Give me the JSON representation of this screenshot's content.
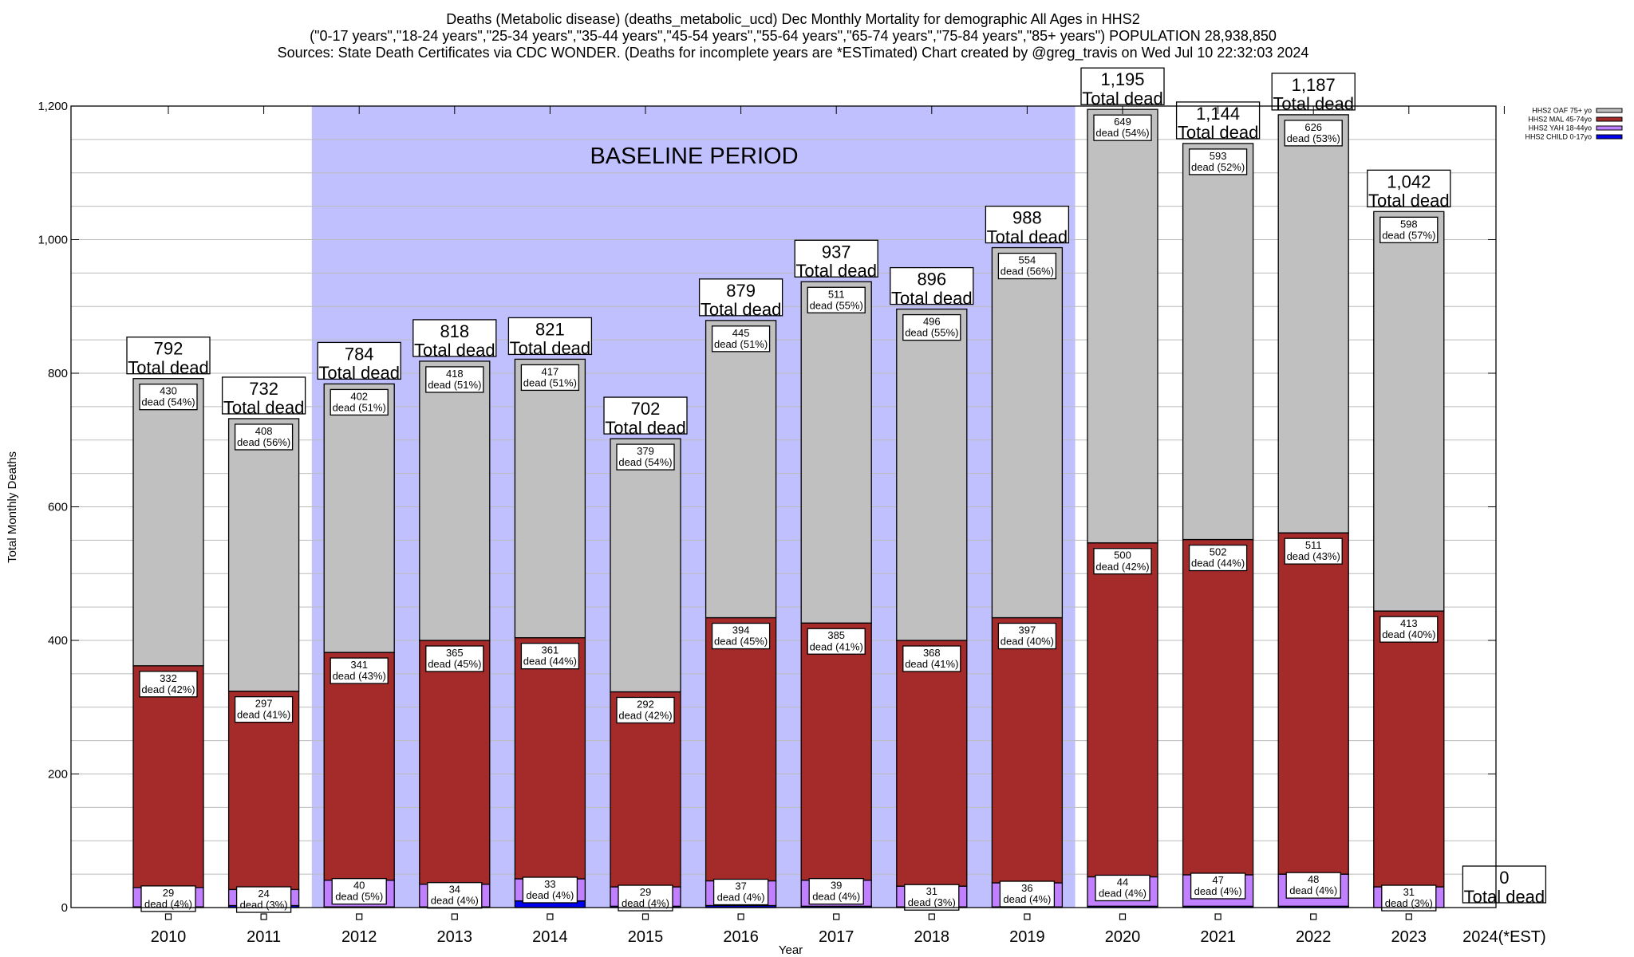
{
  "chart_data": {
    "type": "bar",
    "stacked": true,
    "title_lines": [
      "Deaths (Metabolic disease) (deaths_metabolic_ucd) Dec Monthly Mortality for demographic All Ages in HHS2",
      "(\"0-17 years\",\"18-24 years\",\"25-34 years\",\"35-44 years\",\"45-54 years\",\"55-64 years\",\"65-74 years\",\"75-84 years\",\"85+ years\") POPULATION 28,938,850",
      "Sources: State Death Certificates via CDC WONDER. (Deaths for incomplete years are *ESTimated)              Chart created by @greg_travis on Wed Jul 10 22:32:03 2024"
    ],
    "xlabel": "Year",
    "ylabel": "Total Monthly Deaths",
    "ylim": [
      0,
      1200
    ],
    "yticks": [
      0,
      200,
      400,
      600,
      800,
      1000,
      1200
    ],
    "ytick_labels": [
      "0",
      "200",
      "400",
      "600",
      "800",
      "1,000",
      "1,200"
    ],
    "minor_grid_step": 50,
    "grid": true,
    "legend_position": "top-right",
    "annotation": {
      "text": "BASELINE PERIOD",
      "from": "2012",
      "to": "2019",
      "color": "#c0c0ff"
    },
    "total_suffix": "Total dead",
    "dead_prefix": "dead",
    "categories": [
      "2010",
      "2011",
      "2012",
      "2013",
      "2014",
      "2015",
      "2016",
      "2017",
      "2018",
      "2019",
      "2020",
      "2021",
      "2022",
      "2023",
      "2024(*EST)"
    ],
    "totals": [
      792,
      732,
      784,
      818,
      821,
      702,
      879,
      937,
      896,
      988,
      1195,
      1144,
      1187,
      1042,
      0
    ],
    "total_labels": [
      "792",
      "732",
      "784",
      "818",
      "821",
      "702",
      "879",
      "937",
      "896",
      "988",
      "1,195",
      "1,144",
      "1,187",
      "1,042",
      "0"
    ],
    "series": [
      {
        "name": "HHS2 CHILD 0-17yo",
        "color": "#0000ee",
        "values": [
          1,
          3,
          1,
          1,
          10,
          2,
          3,
          2,
          1,
          1,
          2,
          2,
          2,
          0,
          0
        ],
        "pct": null
      },
      {
        "name": "HHS2 YAH 18-44yo",
        "color": "#c080ff",
        "values": [
          29,
          24,
          40,
          34,
          33,
          29,
          37,
          39,
          31,
          36,
          44,
          47,
          48,
          31,
          0
        ],
        "pct": [
          4,
          3,
          5,
          4,
          4,
          4,
          4,
          4,
          3,
          4,
          4,
          4,
          4,
          3,
          null
        ]
      },
      {
        "name": "HHS2 MAL 45-74yo",
        "color": "#a52a2a",
        "values": [
          332,
          297,
          341,
          365,
          361,
          292,
          394,
          385,
          368,
          397,
          500,
          502,
          511,
          413,
          0
        ],
        "pct": [
          42,
          41,
          43,
          45,
          44,
          42,
          45,
          41,
          41,
          40,
          42,
          44,
          43,
          40,
          null
        ]
      },
      {
        "name": "HHS2 OAF 75+ yo",
        "color": "#c0c0c0",
        "values": [
          430,
          408,
          402,
          418,
          417,
          379,
          445,
          511,
          496,
          554,
          649,
          593,
          626,
          598,
          0
        ],
        "pct": [
          54,
          56,
          51,
          51,
          51,
          54,
          51,
          55,
          55,
          56,
          54,
          52,
          53,
          57,
          null
        ]
      }
    ]
  }
}
